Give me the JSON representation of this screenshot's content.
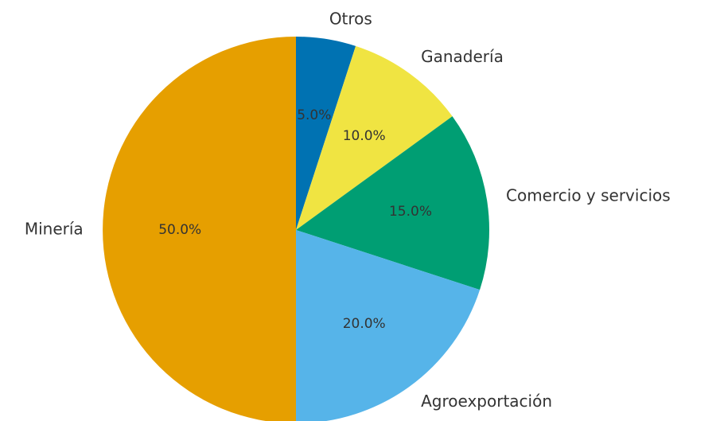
{
  "chart_data": {
    "type": "pie",
    "categories": [
      "Otros",
      "Ganadería",
      "Comercio y servicios",
      "Agroexportación",
      "Minería"
    ],
    "values": [
      5,
      10,
      15,
      20,
      50
    ],
    "value_labels": [
      "5.0%",
      "10.0%",
      "15.0%",
      "20.0%",
      "50.0%"
    ],
    "colors": [
      "#0072b2",
      "#f0e442",
      "#009e73",
      "#56b4e9",
      "#e69f00"
    ]
  }
}
